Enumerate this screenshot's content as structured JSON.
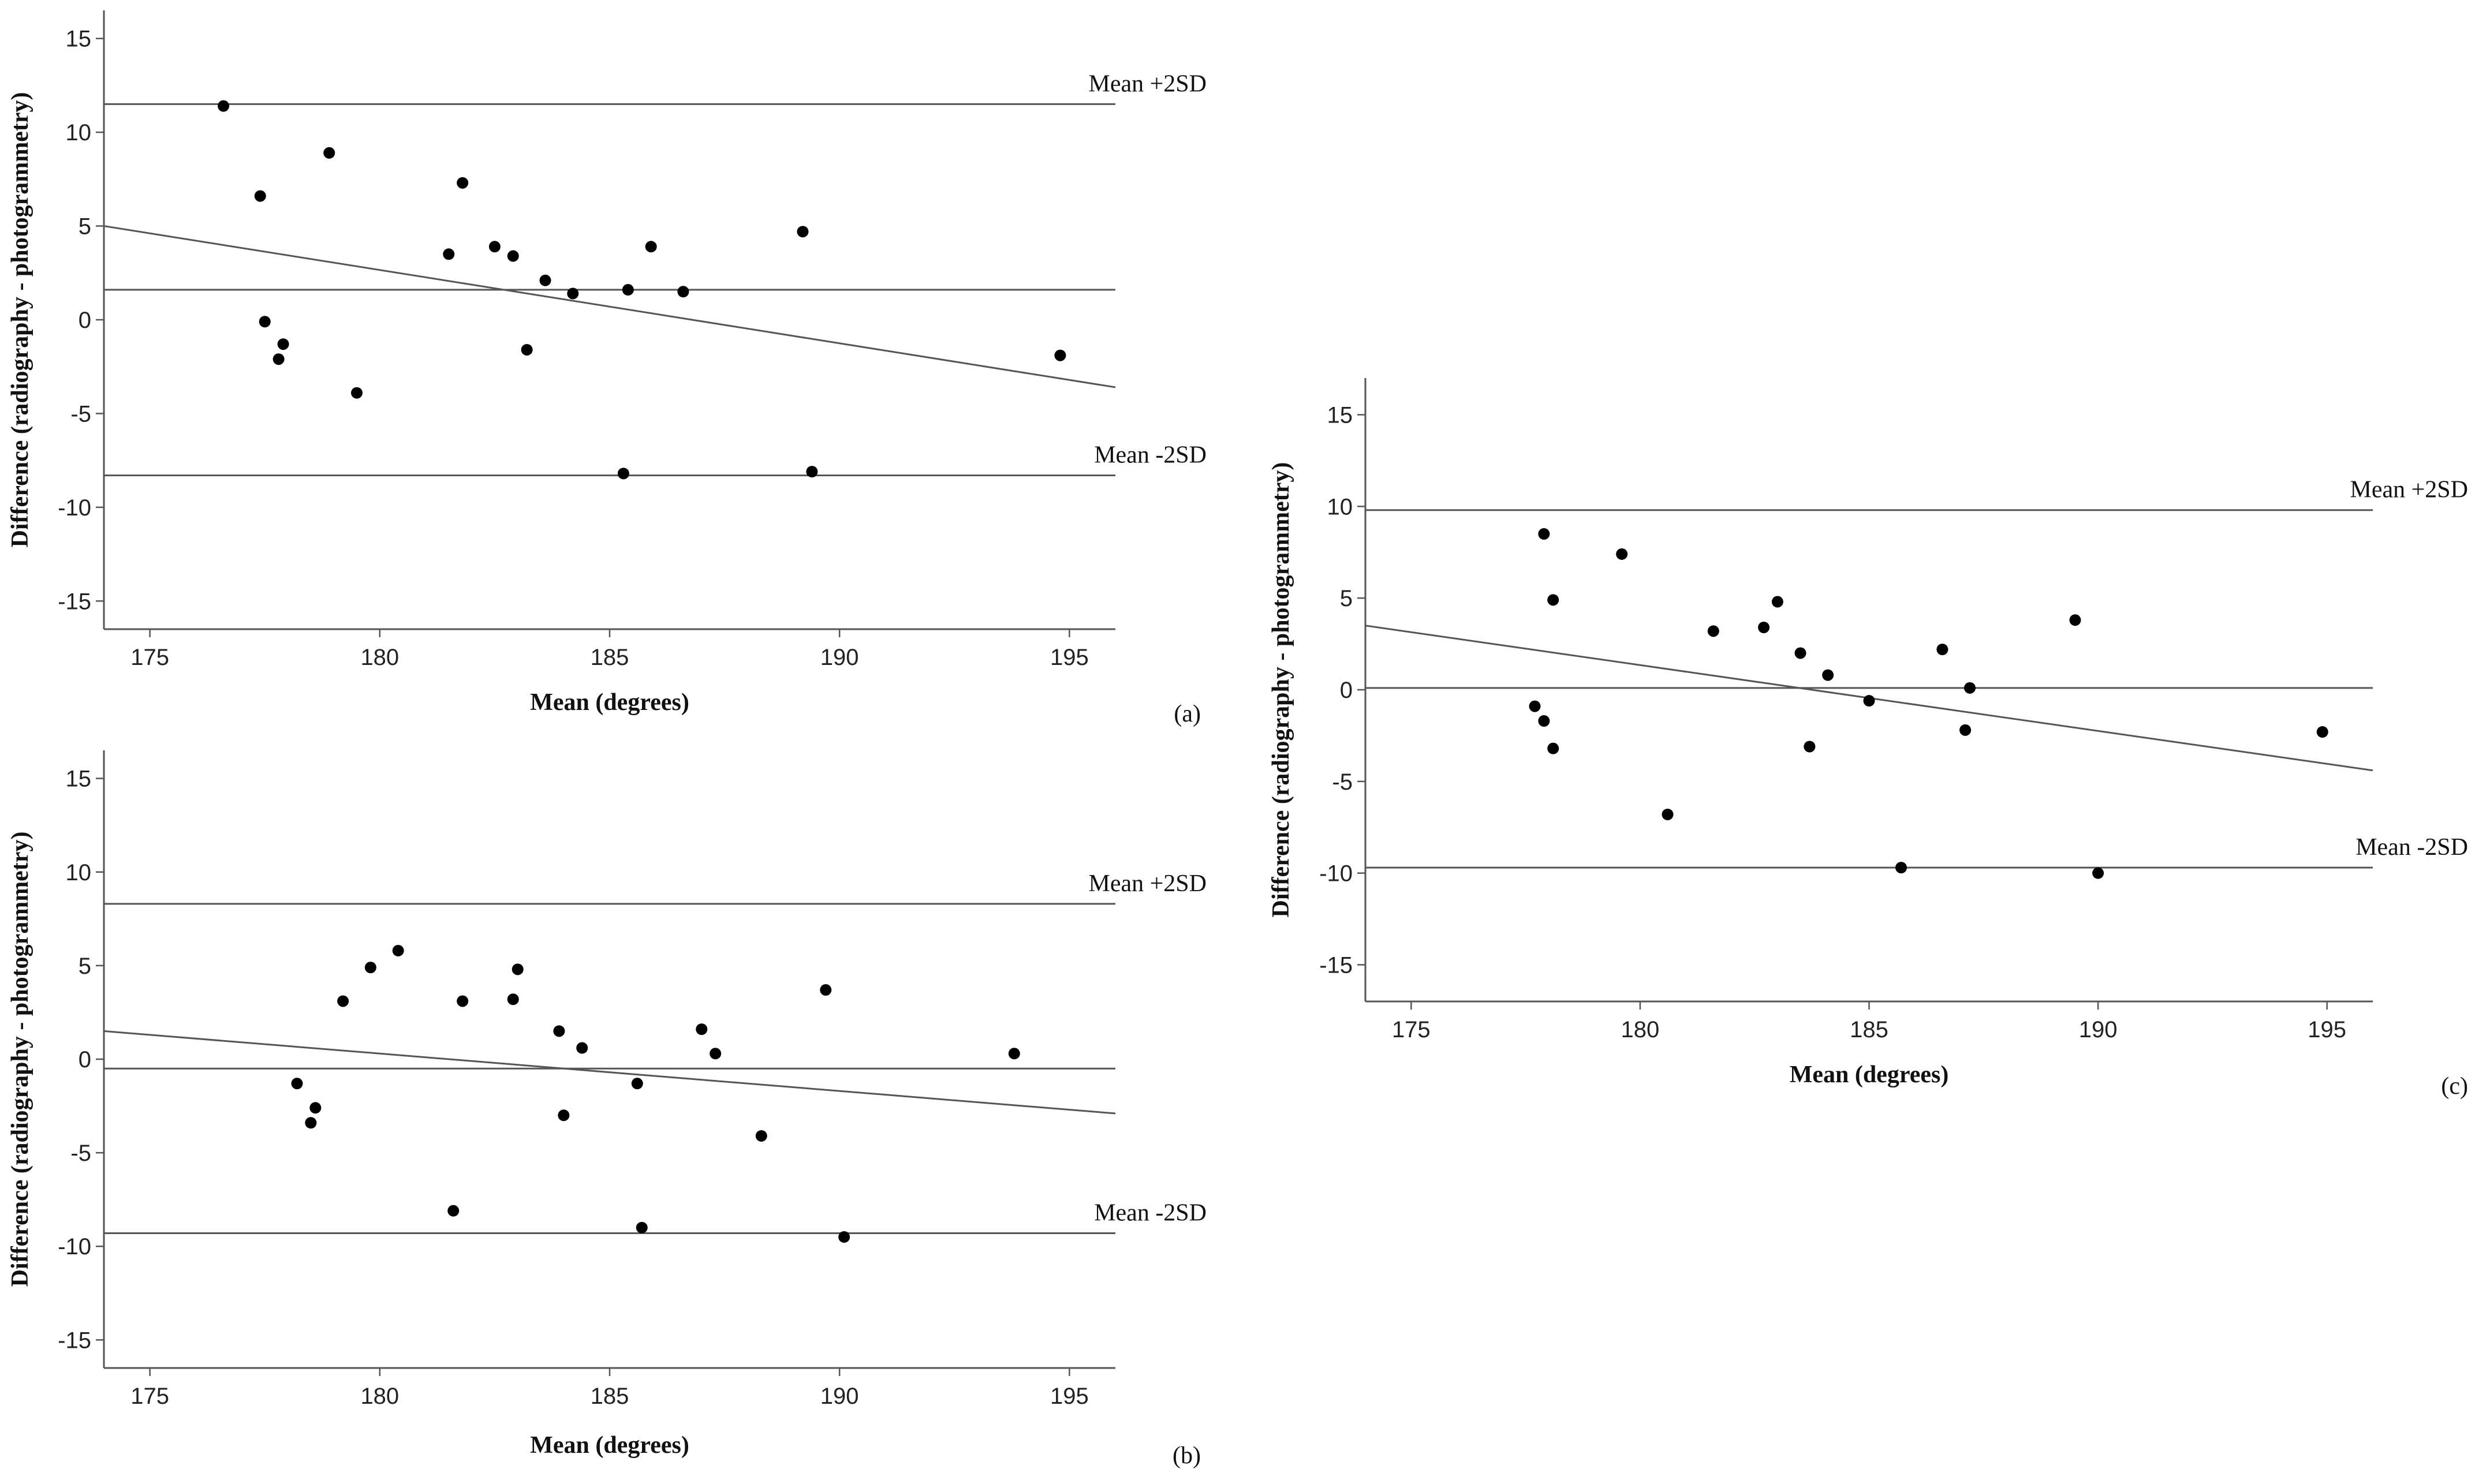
{
  "figure": {
    "description_labels": [
      "(a)",
      "(b)",
      "(c)"
    ]
  },
  "colors": {
    "axis": "#555555",
    "line": "#555555",
    "point": "#000000",
    "text": "#111111"
  },
  "chart_data": [
    {
      "type": "scatter",
      "panel_label": "(a)",
      "xlabel": "Mean (degrees)",
      "ylabel": "Difference (radiography - photogrammetry)",
      "xlim": [
        174,
        196
      ],
      "ylim": [
        -16.5,
        16.5
      ],
      "xticks": [
        175,
        180,
        185,
        190,
        195
      ],
      "yticks": [
        15,
        10,
        5,
        0,
        -5,
        -10,
        -15
      ],
      "grid": false,
      "reference_lines": [
        {
          "name": "upper",
          "label": "Mean +2SD",
          "y": 11.5
        },
        {
          "name": "mean",
          "label": "",
          "y": 1.6
        },
        {
          "name": "lower",
          "label": "Mean -2SD",
          "y": -8.3
        }
      ],
      "regression_line": {
        "x": [
          174,
          196
        ],
        "y": [
          5.0,
          -3.6
        ]
      },
      "points": [
        {
          "x": 176.6,
          "y": 11.4
        },
        {
          "x": 177.4,
          "y": 6.6
        },
        {
          "x": 177.5,
          "y": -0.1
        },
        {
          "x": 177.8,
          "y": -2.1
        },
        {
          "x": 177.9,
          "y": -1.3
        },
        {
          "x": 178.9,
          "y": 8.9
        },
        {
          "x": 179.5,
          "y": -3.9
        },
        {
          "x": 181.5,
          "y": 3.5
        },
        {
          "x": 181.8,
          "y": 7.3
        },
        {
          "x": 182.5,
          "y": 3.9
        },
        {
          "x": 182.9,
          "y": 3.4
        },
        {
          "x": 183.2,
          "y": -1.6
        },
        {
          "x": 183.6,
          "y": 2.1
        },
        {
          "x": 184.2,
          "y": 1.4
        },
        {
          "x": 185.3,
          "y": -8.2
        },
        {
          "x": 185.4,
          "y": 1.6
        },
        {
          "x": 185.9,
          "y": 3.9
        },
        {
          "x": 186.6,
          "y": 1.5
        },
        {
          "x": 189.2,
          "y": 4.7
        },
        {
          "x": 189.4,
          "y": -8.1
        },
        {
          "x": 194.8,
          "y": -1.9
        }
      ]
    },
    {
      "type": "scatter",
      "panel_label": "(b)",
      "xlabel": "Mean (degrees)",
      "ylabel": "Difference (radiography - photogrammetry)",
      "xlim": [
        174,
        196
      ],
      "ylim": [
        -16.5,
        16.5
      ],
      "xticks": [
        175,
        180,
        185,
        190,
        195
      ],
      "yticks": [
        15,
        10,
        5,
        0,
        -5,
        -10,
        -15
      ],
      "grid": false,
      "reference_lines": [
        {
          "name": "upper",
          "label": "Mean +2SD",
          "y": 8.3
        },
        {
          "name": "mean",
          "label": "",
          "y": -0.5
        },
        {
          "name": "lower",
          "label": "Mean -2SD",
          "y": -9.3
        }
      ],
      "regression_line": {
        "x": [
          174,
          196
        ],
        "y": [
          1.5,
          -2.9
        ]
      },
      "points": [
        {
          "x": 178.2,
          "y": -1.3
        },
        {
          "x": 178.5,
          "y": -3.4
        },
        {
          "x": 178.6,
          "y": -2.6
        },
        {
          "x": 179.2,
          "y": 3.1
        },
        {
          "x": 179.8,
          "y": 4.9
        },
        {
          "x": 180.4,
          "y": 5.8
        },
        {
          "x": 181.6,
          "y": -8.1
        },
        {
          "x": 181.8,
          "y": 3.1
        },
        {
          "x": 182.9,
          "y": 3.2
        },
        {
          "x": 183.0,
          "y": 4.8
        },
        {
          "x": 183.9,
          "y": 1.5
        },
        {
          "x": 184.0,
          "y": -3.0
        },
        {
          "x": 184.4,
          "y": 0.6
        },
        {
          "x": 185.6,
          "y": -1.3
        },
        {
          "x": 185.7,
          "y": -9.0
        },
        {
          "x": 187.0,
          "y": 1.6
        },
        {
          "x": 187.3,
          "y": 0.3
        },
        {
          "x": 188.3,
          "y": -4.1
        },
        {
          "x": 189.7,
          "y": 3.7
        },
        {
          "x": 190.1,
          "y": -9.5
        },
        {
          "x": 193.8,
          "y": 0.3
        }
      ]
    },
    {
      "type": "scatter",
      "panel_label": "(c)",
      "xlabel": "Mean (degrees)",
      "ylabel": "Difference (radiography - photogrammetry)",
      "xlim": [
        174,
        196
      ],
      "ylim": [
        -17,
        17
      ],
      "xticks": [
        175,
        180,
        185,
        190,
        195
      ],
      "yticks": [
        15,
        10,
        5,
        0,
        -5,
        -10,
        -15
      ],
      "grid": false,
      "reference_lines": [
        {
          "name": "upper",
          "label": "Mean +2SD",
          "y": 9.8
        },
        {
          "name": "mean",
          "label": "",
          "y": 0.1
        },
        {
          "name": "lower",
          "label": "Mean -2SD",
          "y": -9.7
        }
      ],
      "regression_line": {
        "x": [
          174,
          196
        ],
        "y": [
          3.5,
          -4.4
        ]
      },
      "points": [
        {
          "x": 177.7,
          "y": -0.9
        },
        {
          "x": 177.9,
          "y": 8.5
        },
        {
          "x": 177.9,
          "y": -1.7
        },
        {
          "x": 178.1,
          "y": 4.9
        },
        {
          "x": 178.1,
          "y": -3.2
        },
        {
          "x": 179.6,
          "y": 7.4
        },
        {
          "x": 180.6,
          "y": -6.8
        },
        {
          "x": 181.6,
          "y": 3.2
        },
        {
          "x": 182.7,
          "y": 3.4
        },
        {
          "x": 183.0,
          "y": 4.8
        },
        {
          "x": 183.5,
          "y": 2.0
        },
        {
          "x": 183.7,
          "y": -3.1
        },
        {
          "x": 184.1,
          "y": 0.8
        },
        {
          "x": 185.0,
          "y": -0.6
        },
        {
          "x": 185.7,
          "y": -9.7
        },
        {
          "x": 186.6,
          "y": 2.2
        },
        {
          "x": 187.1,
          "y": -2.2
        },
        {
          "x": 187.2,
          "y": 0.1
        },
        {
          "x": 189.5,
          "y": 3.8
        },
        {
          "x": 190.0,
          "y": -10.0
        },
        {
          "x": 194.9,
          "y": -2.3
        }
      ]
    }
  ]
}
